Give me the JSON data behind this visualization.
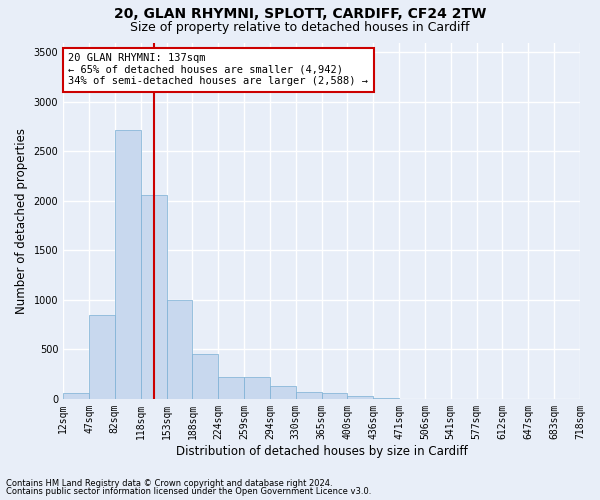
{
  "title_line1": "20, GLAN RHYMNI, SPLOTT, CARDIFF, CF24 2TW",
  "title_line2": "Size of property relative to detached houses in Cardiff",
  "xlabel": "Distribution of detached houses by size in Cardiff",
  "ylabel": "Number of detached properties",
  "annotation_title": "20 GLAN RHYMNI: 137sqm",
  "annotation_line1": "← 65% of detached houses are smaller (4,942)",
  "annotation_line2": "34% of semi-detached houses are larger (2,588) →",
  "footnote1": "Contains HM Land Registry data © Crown copyright and database right 2024.",
  "footnote2": "Contains public sector information licensed under the Open Government Licence v3.0.",
  "bar_values": [
    60,
    850,
    2720,
    2060,
    1000,
    450,
    220,
    220,
    130,
    65,
    55,
    30,
    10,
    0,
    0,
    0,
    0,
    0,
    0,
    0
  ],
  "bin_labels": [
    "12sqm",
    "47sqm",
    "82sqm",
    "118sqm",
    "153sqm",
    "188sqm",
    "224sqm",
    "259sqm",
    "294sqm",
    "330sqm",
    "365sqm",
    "400sqm",
    "436sqm",
    "471sqm",
    "506sqm",
    "541sqm",
    "577sqm",
    "612sqm",
    "647sqm",
    "683sqm",
    "718sqm"
  ],
  "bar_color": "#c8d8ee",
  "bar_edge_color": "#7aafd4",
  "vline_color": "#cc0000",
  "annotation_box_color": "#cc0000",
  "ylim": [
    0,
    3600
  ],
  "yticks": [
    0,
    500,
    1000,
    1500,
    2000,
    2500,
    3000,
    3500
  ],
  "bg_color": "#e8eef8",
  "plot_bg_color": "#e8eef8",
  "grid_color": "#ffffff",
  "title_fontsize": 10,
  "subtitle_fontsize": 9,
  "axis_label_fontsize": 8.5,
  "tick_fontsize": 7,
  "annot_fontsize": 7.5
}
